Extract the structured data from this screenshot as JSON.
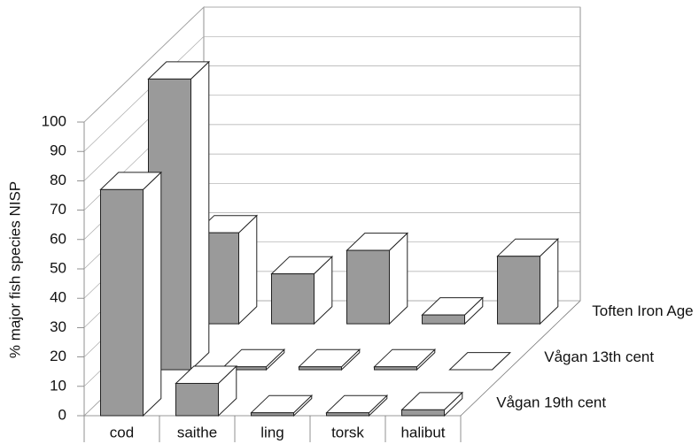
{
  "chart_data": {
    "type": "bar3d",
    "y_label": "% major fish species NISP",
    "categories": [
      "cod",
      "saithe",
      "ling",
      "torsk",
      "halibut"
    ],
    "series": [
      {
        "name": "Toften Iron Age",
        "color": "#9a9a9a",
        "values": [
          31,
          17,
          25,
          3,
          23
        ]
      },
      {
        "name": "Vågan 13th cent",
        "color": "#9a9a9a",
        "values": [
          99,
          1,
          1,
          1,
          0
        ]
      },
      {
        "name": "Vågan 19th cent",
        "color": "#9a9a9a",
        "values": [
          77,
          11,
          1,
          1,
          2
        ]
      }
    ],
    "ylim": [
      0,
      100
    ],
    "yticks": [
      0,
      10,
      20,
      30,
      40,
      50,
      60,
      70,
      80,
      90,
      100
    ],
    "grid": true
  }
}
